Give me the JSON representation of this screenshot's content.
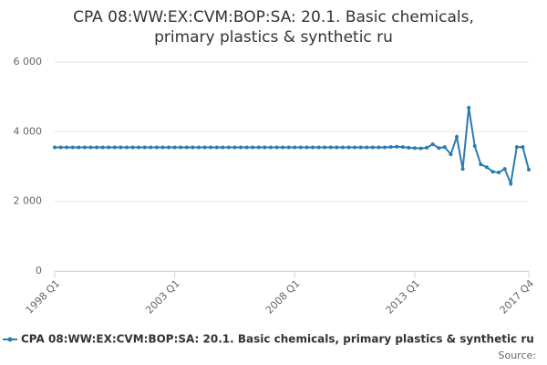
{
  "chart_data": {
    "type": "line",
    "title": "CPA 08:WW:EX:CVM:BOP:SA: 20.1. Basic chemicals, primary plastics & synthetic ru",
    "source": "Source:",
    "categories": [
      "1998 Q1",
      null,
      null,
      null,
      null,
      null,
      null,
      null,
      null,
      null,
      null,
      null,
      null,
      null,
      null,
      null,
      null,
      null,
      null,
      null,
      "2003 Q1",
      null,
      null,
      null,
      null,
      null,
      null,
      null,
      null,
      null,
      null,
      null,
      null,
      null,
      null,
      null,
      null,
      null,
      null,
      null,
      "2008 Q1",
      null,
      null,
      null,
      null,
      null,
      null,
      null,
      null,
      null,
      null,
      null,
      null,
      null,
      null,
      null,
      null,
      null,
      null,
      null,
      "2013 Q1",
      null,
      null,
      null,
      null,
      null,
      null,
      null,
      null,
      null,
      null,
      null,
      null,
      null,
      null,
      null,
      null,
      null,
      null,
      "2017 Q4"
    ],
    "series": [
      {
        "name": "CPA 08:WW:EX:CVM:BOP:SA: 20.1. Basic chemicals, primary plastics & synthetic ru",
        "color": "#2b7bb0",
        "values": [
          3550,
          3550,
          3550,
          3550,
          3550,
          3550,
          3550,
          3550,
          3550,
          3550,
          3550,
          3550,
          3550,
          3550,
          3550,
          3550,
          3550,
          3550,
          3550,
          3550,
          3550,
          3550,
          3550,
          3550,
          3550,
          3550,
          3550,
          3550,
          3550,
          3550,
          3550,
          3550,
          3550,
          3550,
          3550,
          3550,
          3550,
          3550,
          3550,
          3550,
          3550,
          3550,
          3550,
          3550,
          3550,
          3550,
          3550,
          3550,
          3550,
          3550,
          3550,
          3550,
          3550,
          3550,
          3550,
          3550,
          3560,
          3570,
          3560,
          3540,
          3530,
          3520,
          3540,
          3640,
          3530,
          3560,
          3350,
          3850,
          2930,
          4690,
          3590,
          3060,
          2980,
          2850,
          2830,
          2930,
          2510,
          3560,
          3560,
          2910
        ]
      }
    ],
    "ylim": [
      0,
      6000
    ],
    "yticks": [
      {
        "value": 0,
        "label": "0"
      },
      {
        "value": 2000,
        "label": "2 000"
      },
      {
        "value": 4000,
        "label": "4 000"
      },
      {
        "value": 6000,
        "label": "6 000"
      }
    ],
    "grid": true
  }
}
